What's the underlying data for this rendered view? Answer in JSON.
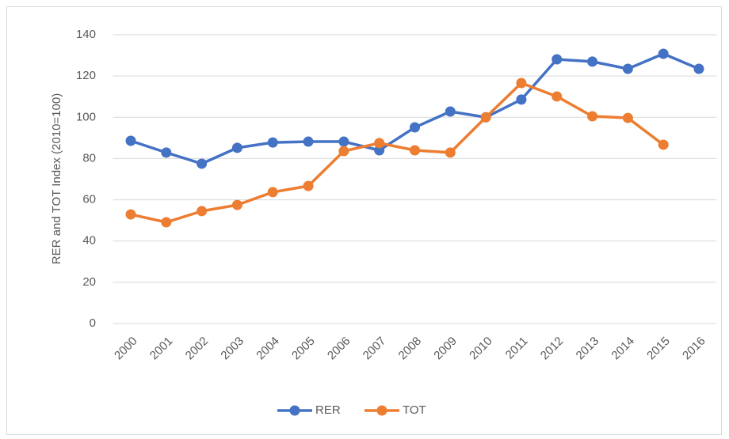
{
  "chart_data": {
    "type": "line",
    "y_label": "RER and TOT Index (2010=100)",
    "categories": [
      "2000",
      "2001",
      "2002",
      "2003",
      "2004",
      "2005",
      "2006",
      "2007",
      "2008",
      "2009",
      "2010",
      "2011",
      "2012",
      "2013",
      "2014",
      "2015",
      "2016"
    ],
    "series": [
      {
        "name": "RER",
        "color": "#4472c4",
        "values": [
          88.6,
          82.9,
          77.5,
          85.2,
          87.8,
          88.2,
          88.2,
          84,
          95.1,
          102.8,
          100,
          108.6,
          128.1,
          127,
          123.5,
          130.8,
          123.5
        ]
      },
      {
        "name": "TOT",
        "color": "#ed7d31",
        "values": [
          52.9,
          49.1,
          54.5,
          57.5,
          63.7,
          66.7,
          83.6,
          87.5,
          84,
          82.9,
          100,
          116.6,
          110.1,
          100.5,
          99.7,
          86.7,
          null
        ]
      }
    ],
    "ylim": [
      0,
      140
    ],
    "yticks": [
      0,
      20,
      40,
      60,
      80,
      100,
      120,
      140
    ],
    "grid": true,
    "legend": "bottom"
  }
}
